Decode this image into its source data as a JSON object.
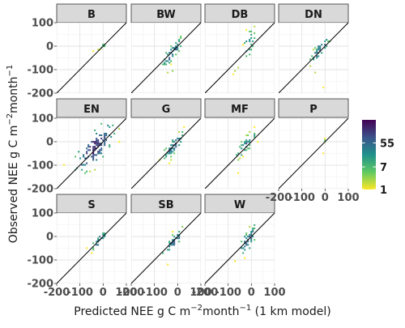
{
  "chart_data": {
    "type": "heatmap",
    "subtype": "faceted 2D-bin density scatter with 1:1 reference line",
    "xlabel": {
      "base": "Predicted NEE g C m",
      "exp1": "−2",
      "mid": "month",
      "exp2": "−1",
      "tail": " (1 km model)"
    },
    "ylabel": {
      "base": "Observed NEE g C m",
      "exp1": "−2",
      "mid": "month",
      "exp2": "−1"
    },
    "xlim": [
      -200,
      100
    ],
    "ylim": [
      -200,
      100
    ],
    "x_ticks": [
      -200,
      -100,
      0,
      100
    ],
    "y_ticks": [
      -200,
      -100,
      0,
      100
    ],
    "x_tick_labels": [
      "-200",
      "-100",
      "0",
      "100"
    ],
    "y_tick_labels": [
      "-200",
      "-100",
      "0",
      "100"
    ],
    "reference_line": "y = x",
    "grid": true,
    "colorbar": {
      "scale": "log (count)",
      "palette": "viridis",
      "colors": [
        "#fde725",
        "#5ec962",
        "#21918c",
        "#3b528b",
        "#440154"
      ],
      "range": [
        1,
        400
      ],
      "tick_values": [
        1,
        7,
        55
      ],
      "tick_labels": [
        "1",
        "7",
        "55"
      ],
      "position": "right"
    },
    "facets": [
      {
        "label": "B",
        "cloud": {
          "cx": 0,
          "cy": 0,
          "sx": 8,
          "sy": 10,
          "n": 8,
          "corr": 0.6
        },
        "extras": [
          [
            -40,
            -25,
            1
          ],
          [
            -20,
            -15,
            2
          ]
        ]
      },
      {
        "label": "BW",
        "cloud": {
          "cx": -20,
          "cy": -25,
          "sx": 22,
          "sy": 30,
          "n": 45,
          "corr": 0.85
        },
        "extras": [
          [
            -40,
            -110,
            2
          ],
          [
            -25,
            -105,
            3
          ]
        ]
      },
      {
        "label": "DB",
        "cloud": {
          "cx": -10,
          "cy": 10,
          "sx": 14,
          "sy": 35,
          "n": 22,
          "corr": 0.55
        },
        "extras": [
          [
            -70,
            -105,
            2
          ],
          [
            -75,
            -120,
            1
          ],
          [
            -60,
            -90,
            2
          ]
        ]
      },
      {
        "label": "DN",
        "cloud": {
          "cx": -25,
          "cy": -20,
          "sx": 22,
          "sy": 28,
          "n": 40,
          "corr": 0.85
        },
        "extras": [
          [
            -5,
            -175,
            1
          ],
          [
            -45,
            -110,
            2
          ]
        ]
      },
      {
        "label": "EN",
        "cloud": {
          "cx": -35,
          "cy": -25,
          "sx": 38,
          "sy": 45,
          "n": 120,
          "corr": 0.7
        },
        "extras": [
          [
            -55,
            -125,
            2
          ],
          [
            -35,
            -120,
            2
          ]
        ]
      },
      {
        "label": "G",
        "cloud": {
          "cx": -15,
          "cy": -15,
          "sx": 22,
          "sy": 28,
          "n": 50,
          "corr": 0.85
        },
        "extras": [
          [
            -30,
            -80,
            2
          ]
        ]
      },
      {
        "label": "MF",
        "cloud": {
          "cx": -25,
          "cy": -15,
          "sx": 22,
          "sy": 28,
          "n": 35,
          "corr": 0.85
        },
        "extras": [
          [
            -55,
            -135,
            1
          ],
          [
            10,
            60,
            1
          ]
        ]
      },
      {
        "label": "P",
        "cloud": {
          "cx": -5,
          "cy": -8,
          "sx": 4,
          "sy": 12,
          "n": 4,
          "corr": 0.5
        },
        "extras": [
          [
            -5,
            -50,
            1
          ],
          [
            0,
            5,
            2
          ]
        ]
      },
      {
        "label": "S",
        "cloud": {
          "cx": -15,
          "cy": -15,
          "sx": 18,
          "sy": 22,
          "n": 28,
          "corr": 0.85
        },
        "extras": [
          [
            -70,
            -50,
            1
          ]
        ]
      },
      {
        "label": "SB",
        "cloud": {
          "cx": -15,
          "cy": -20,
          "sx": 22,
          "sy": 28,
          "n": 40,
          "corr": 0.85
        },
        "extras": [
          [
            -40,
            -120,
            1
          ]
        ]
      },
      {
        "label": "W",
        "cloud": {
          "cx": -15,
          "cy": -20,
          "sx": 20,
          "sy": 32,
          "n": 45,
          "corr": 0.75
        },
        "extras": [
          [
            -30,
            -90,
            1
          ]
        ]
      }
    ]
  }
}
